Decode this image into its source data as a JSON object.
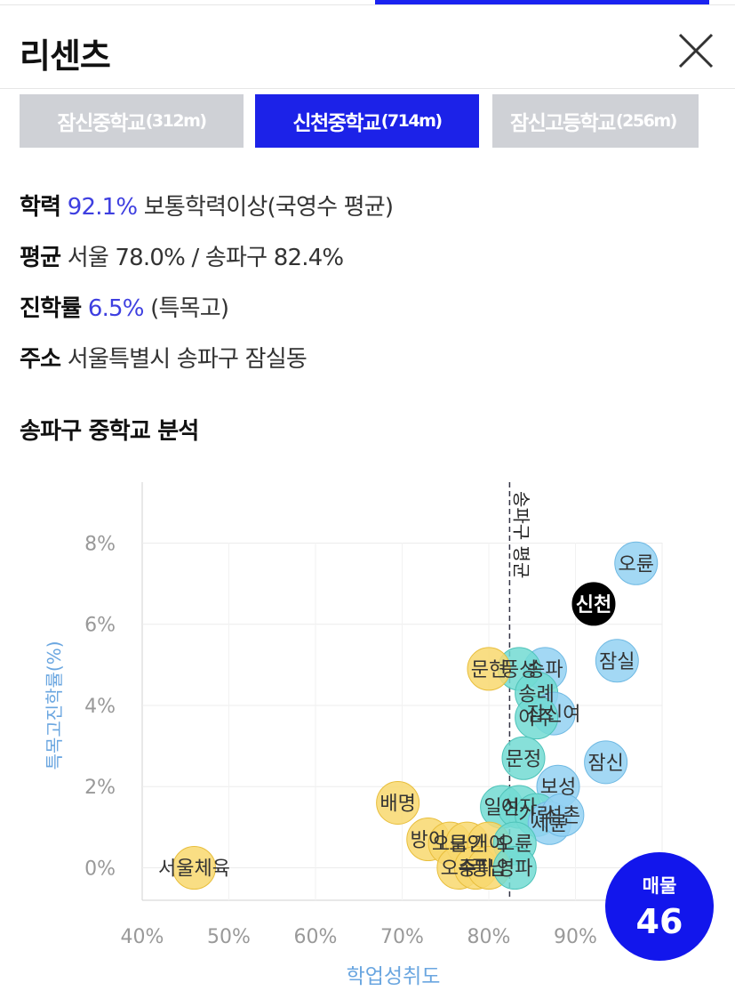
{
  "header": {
    "title": "리센츠"
  },
  "tabs": [
    {
      "name": "잠신중학교",
      "dist": "(312m)",
      "active": false
    },
    {
      "name": "신천중학교",
      "dist": "(714m)",
      "active": true
    },
    {
      "name": "잠신고등학교",
      "dist": "(256m)",
      "active": false
    }
  ],
  "info": {
    "academic": {
      "label": "학력",
      "value": "92.1%",
      "desc": "보통학력이상(국영수 평균)"
    },
    "average": {
      "label": "평균",
      "text": "서울 78.0% / 송파구 82.4%"
    },
    "advancement": {
      "label": "진학률",
      "value": "6.5%",
      "desc": "(특목고)"
    },
    "address": {
      "label": "주소",
      "text": "서울특별시 송파구 잠실동"
    }
  },
  "section_title": "송파구 중학교 분석",
  "badge": {
    "label": "매물",
    "count": "46"
  },
  "colors": {
    "accent": "#1c22e8",
    "blue_bubble": "#8fcdf0",
    "teal_bubble": "#6ed8d0",
    "yellow_bubble": "#f7d56a",
    "selected": "#000000"
  },
  "chart_data": {
    "type": "scatter",
    "xlabel": "학업성취도",
    "ylabel": "특목고진학률(%)",
    "xlim": [
      40,
      100
    ],
    "ylim": [
      -0.8,
      9.5
    ],
    "x_ticks": [
      "40%",
      "50%",
      "60%",
      "70%",
      "80%",
      "90%"
    ],
    "y_ticks": [
      "0%",
      "2%",
      "4%",
      "6%",
      "8%"
    ],
    "avg_line": {
      "x": 82.4,
      "label": "송파구 평균"
    },
    "points": [
      {
        "name": "오륜",
        "x": 97.0,
        "y": 7.5,
        "group": "blue"
      },
      {
        "name": "신천",
        "x": 92.1,
        "y": 6.5,
        "group": "selected"
      },
      {
        "name": "잠실",
        "x": 94.8,
        "y": 5.1,
        "group": "blue"
      },
      {
        "name": "송파",
        "x": 86.5,
        "y": 4.9,
        "group": "blue"
      },
      {
        "name": "풍성",
        "x": 83.5,
        "y": 4.9,
        "group": "teal"
      },
      {
        "name": "문현",
        "x": 80.0,
        "y": 4.9,
        "group": "yellow"
      },
      {
        "name": "송례",
        "x": 85.5,
        "y": 4.3,
        "group": "teal"
      },
      {
        "name": "잠신여",
        "x": 87.5,
        "y": 3.8,
        "group": "blue"
      },
      {
        "name": "아주",
        "x": 85.5,
        "y": 3.7,
        "group": "teal"
      },
      {
        "name": "잠신",
        "x": 93.5,
        "y": 2.6,
        "group": "blue"
      },
      {
        "name": "문정",
        "x": 84.0,
        "y": 2.7,
        "group": "teal"
      },
      {
        "name": "보성",
        "x": 88.0,
        "y": 2.0,
        "group": "blue"
      },
      {
        "name": "배명",
        "x": 69.5,
        "y": 1.6,
        "group": "yellow"
      },
      {
        "name": "일신",
        "x": 81.5,
        "y": 1.5,
        "group": "teal"
      },
      {
        "name": "여자",
        "x": 83.5,
        "y": 1.5,
        "group": "teal"
      },
      {
        "name": "가락",
        "x": 85.5,
        "y": 1.3,
        "group": "teal"
      },
      {
        "name": "세륜",
        "x": 87.0,
        "y": 1.1,
        "group": "blue"
      },
      {
        "name": "석촌",
        "x": 88.5,
        "y": 1.3,
        "group": "blue"
      },
      {
        "name": "방이",
        "x": 73.0,
        "y": 0.7,
        "group": "yellow"
      },
      {
        "name": "오금",
        "x": 75.5,
        "y": 0.6,
        "group": "yellow"
      },
      {
        "name": "보인",
        "x": 77.5,
        "y": 0.6,
        "group": "yellow"
      },
      {
        "name": "거여",
        "x": 80.0,
        "y": 0.6,
        "group": "yellow"
      },
      {
        "name": "오륜",
        "x": 83.0,
        "y": 0.6,
        "group": "teal"
      },
      {
        "name": "서울체육",
        "x": 46.0,
        "y": 0.0,
        "group": "yellow"
      },
      {
        "name": "오주",
        "x": 76.5,
        "y": 0.0,
        "group": "yellow"
      },
      {
        "name": "송파",
        "x": 78.5,
        "y": 0.0,
        "group": "yellow"
      },
      {
        "name": "풍납",
        "x": 80.0,
        "y": 0.0,
        "group": "yellow"
      },
      {
        "name": "영파",
        "x": 83.0,
        "y": 0.0,
        "group": "teal"
      }
    ]
  }
}
